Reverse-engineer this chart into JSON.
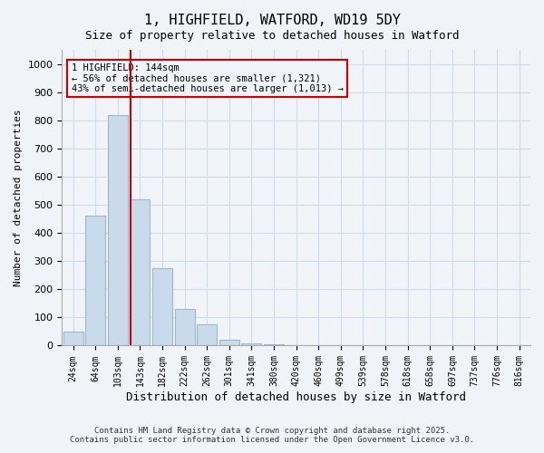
{
  "title_line1": "1, HIGHFIELD, WATFORD, WD19 5DY",
  "title_line2": "Size of property relative to detached houses in Watford",
  "xlabel": "Distribution of detached houses by size in Watford",
  "ylabel": "Number of detached properties",
  "bar_labels": [
    "24sqm",
    "64sqm",
    "103sqm",
    "143sqm",
    "182sqm",
    "222sqm",
    "262sqm",
    "301sqm",
    "341sqm",
    "380sqm",
    "420sqm",
    "460sqm",
    "499sqm",
    "539sqm",
    "578sqm",
    "618sqm",
    "658sqm",
    "697sqm",
    "737sqm",
    "776sqm",
    "816sqm"
  ],
  "bar_values": [
    50,
    460,
    820,
    520,
    275,
    130,
    75,
    20,
    8,
    4,
    2,
    1,
    1,
    0,
    0,
    0,
    0,
    0,
    0,
    0,
    0
  ],
  "bar_color": "#c9daea",
  "bar_edge_color": "#a0b8cc",
  "ylim": [
    0,
    1050
  ],
  "yticks": [
    0,
    100,
    200,
    300,
    400,
    500,
    600,
    700,
    800,
    900,
    1000
  ],
  "property_line_x": 2.56,
  "property_line_color": "#cc0000",
  "annotation_text": "1 HIGHFIELD: 144sqm\n← 56% of detached houses are smaller (1,321)\n43% of semi-detached houses are larger (1,013) →",
  "annotation_box_color": "#cc0000",
  "footnote_line1": "Contains HM Land Registry data © Crown copyright and database right 2025.",
  "footnote_line2": "Contains public sector information licensed under the Open Government Licence v3.0.",
  "grid_color": "#d0dce8",
  "background_color": "#f0f4f8"
}
